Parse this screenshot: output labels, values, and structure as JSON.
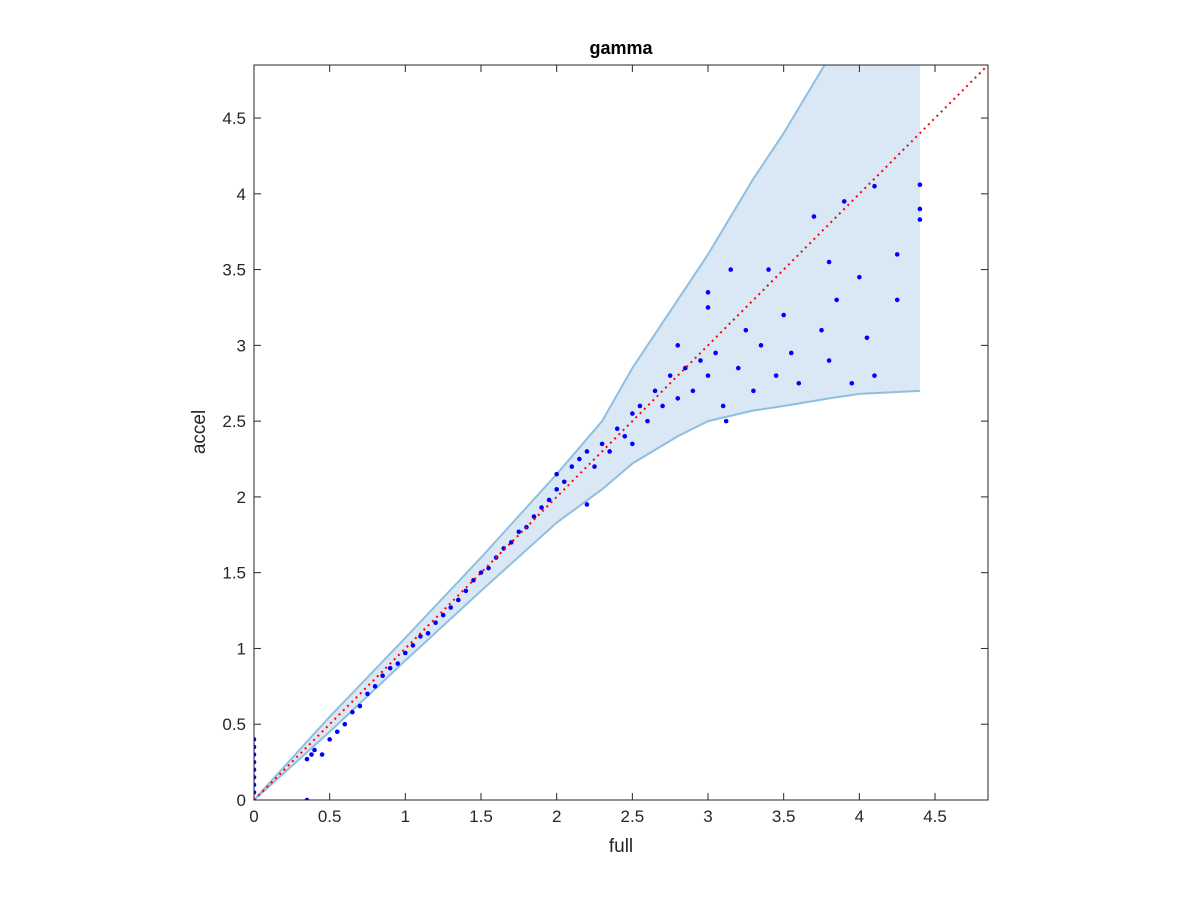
{
  "chart_data": {
    "type": "scatter",
    "title": "gamma",
    "x_label": "full",
    "y_label": "accel",
    "xlim": [
      0,
      4.85
    ],
    "ylim": [
      0,
      4.85
    ],
    "xticks": [
      0,
      0.5,
      1,
      1.5,
      2,
      2.5,
      3,
      3.5,
      4,
      4.5
    ],
    "yticks": [
      0,
      0.5,
      1,
      1.5,
      2,
      2.5,
      3,
      3.5,
      4,
      4.5
    ],
    "band": {
      "color": "#d9e8f4",
      "edge_color": "#8fbfe0",
      "upper": {
        "x": [
          0,
          0.5,
          1,
          1.5,
          2,
          2.3,
          2.5,
          2.8,
          3,
          3.3,
          3.5,
          3.77,
          4.4
        ],
        "values": [
          0,
          0.55,
          1.07,
          1.6,
          2.15,
          2.5,
          2.85,
          3.3,
          3.6,
          4.1,
          4.4,
          4.85,
          4.85
        ]
      },
      "lower": {
        "x": [
          0,
          0.5,
          1,
          1.5,
          2,
          2.3,
          2.5,
          2.8,
          3,
          3.3,
          3.5,
          3.8,
          4,
          4.4
        ],
        "values": [
          0,
          0.45,
          0.92,
          1.38,
          1.83,
          2.05,
          2.22,
          2.4,
          2.5,
          2.57,
          2.6,
          2.65,
          2.68,
          2.7
        ]
      }
    },
    "reference": {
      "color": "#ff0000",
      "x": [
        0,
        4.85
      ],
      "values": [
        0,
        4.85
      ]
    },
    "points": {
      "color": "#0000ff",
      "x": [
        0,
        0,
        0,
        0,
        0,
        0,
        0,
        0,
        0.35,
        0.35,
        0.38,
        0.4,
        0.45,
        0.5,
        0.55,
        0.6,
        0.65,
        0.7,
        0.75,
        0.8,
        0.85,
        0.9,
        0.95,
        1.0,
        1.05,
        1.1,
        1.15,
        1.2,
        1.25,
        1.3,
        1.35,
        1.4,
        1.45,
        1.5,
        1.55,
        1.6,
        1.65,
        1.7,
        1.75,
        1.8,
        1.85,
        1.9,
        1.95,
        2.0,
        2.0,
        2.05,
        2.1,
        2.15,
        2.2,
        2.25,
        2.3,
        2.35,
        2.4,
        2.45,
        2.5,
        2.5,
        2.55,
        2.6,
        2.65,
        2.7,
        2.75,
        2.8,
        2.85,
        2.9,
        2.95,
        3.0,
        3.0,
        3.05,
        3.1,
        3.12,
        3.15,
        3.2,
        3.25,
        3.3,
        3.35,
        3.4,
        3.45,
        3.5,
        3.55,
        3.6,
        3.7,
        3.75,
        3.8,
        3.85,
        3.9,
        3.95,
        4.0,
        4.05,
        4.1,
        4.1,
        4.25,
        4.25,
        2.2,
        4.4,
        4.4,
        4.4,
        3.0,
        2.8,
        3.8
      ],
      "values": [
        0.05,
        0.1,
        0.15,
        0.2,
        0.25,
        0.3,
        0.35,
        0.4,
        0,
        0.27,
        0.3,
        0.33,
        0.3,
        0.4,
        0.45,
        0.5,
        0.58,
        0.62,
        0.7,
        0.75,
        0.82,
        0.87,
        0.9,
        0.97,
        1.02,
        1.08,
        1.1,
        1.17,
        1.22,
        1.27,
        1.32,
        1.38,
        1.45,
        1.5,
        1.53,
        1.6,
        1.66,
        1.7,
        1.77,
        1.8,
        1.87,
        1.93,
        1.98,
        2.05,
        2.15,
        2.1,
        2.2,
        2.25,
        2.3,
        2.2,
        2.35,
        2.3,
        2.45,
        2.4,
        2.55,
        2.35,
        2.6,
        2.5,
        2.7,
        2.6,
        2.8,
        2.65,
        2.85,
        2.7,
        2.9,
        2.8,
        3.25,
        2.95,
        2.6,
        2.5,
        3.5,
        2.85,
        3.1,
        2.7,
        3.0,
        3.5,
        2.8,
        3.2,
        2.95,
        2.75,
        3.85,
        3.1,
        2.9,
        3.3,
        3.95,
        2.75,
        3.45,
        3.05,
        4.05,
        2.8,
        3.6,
        3.3,
        1.95,
        4.06,
        3.9,
        3.83,
        3.35,
        3.0,
        3.55
      ]
    }
  }
}
